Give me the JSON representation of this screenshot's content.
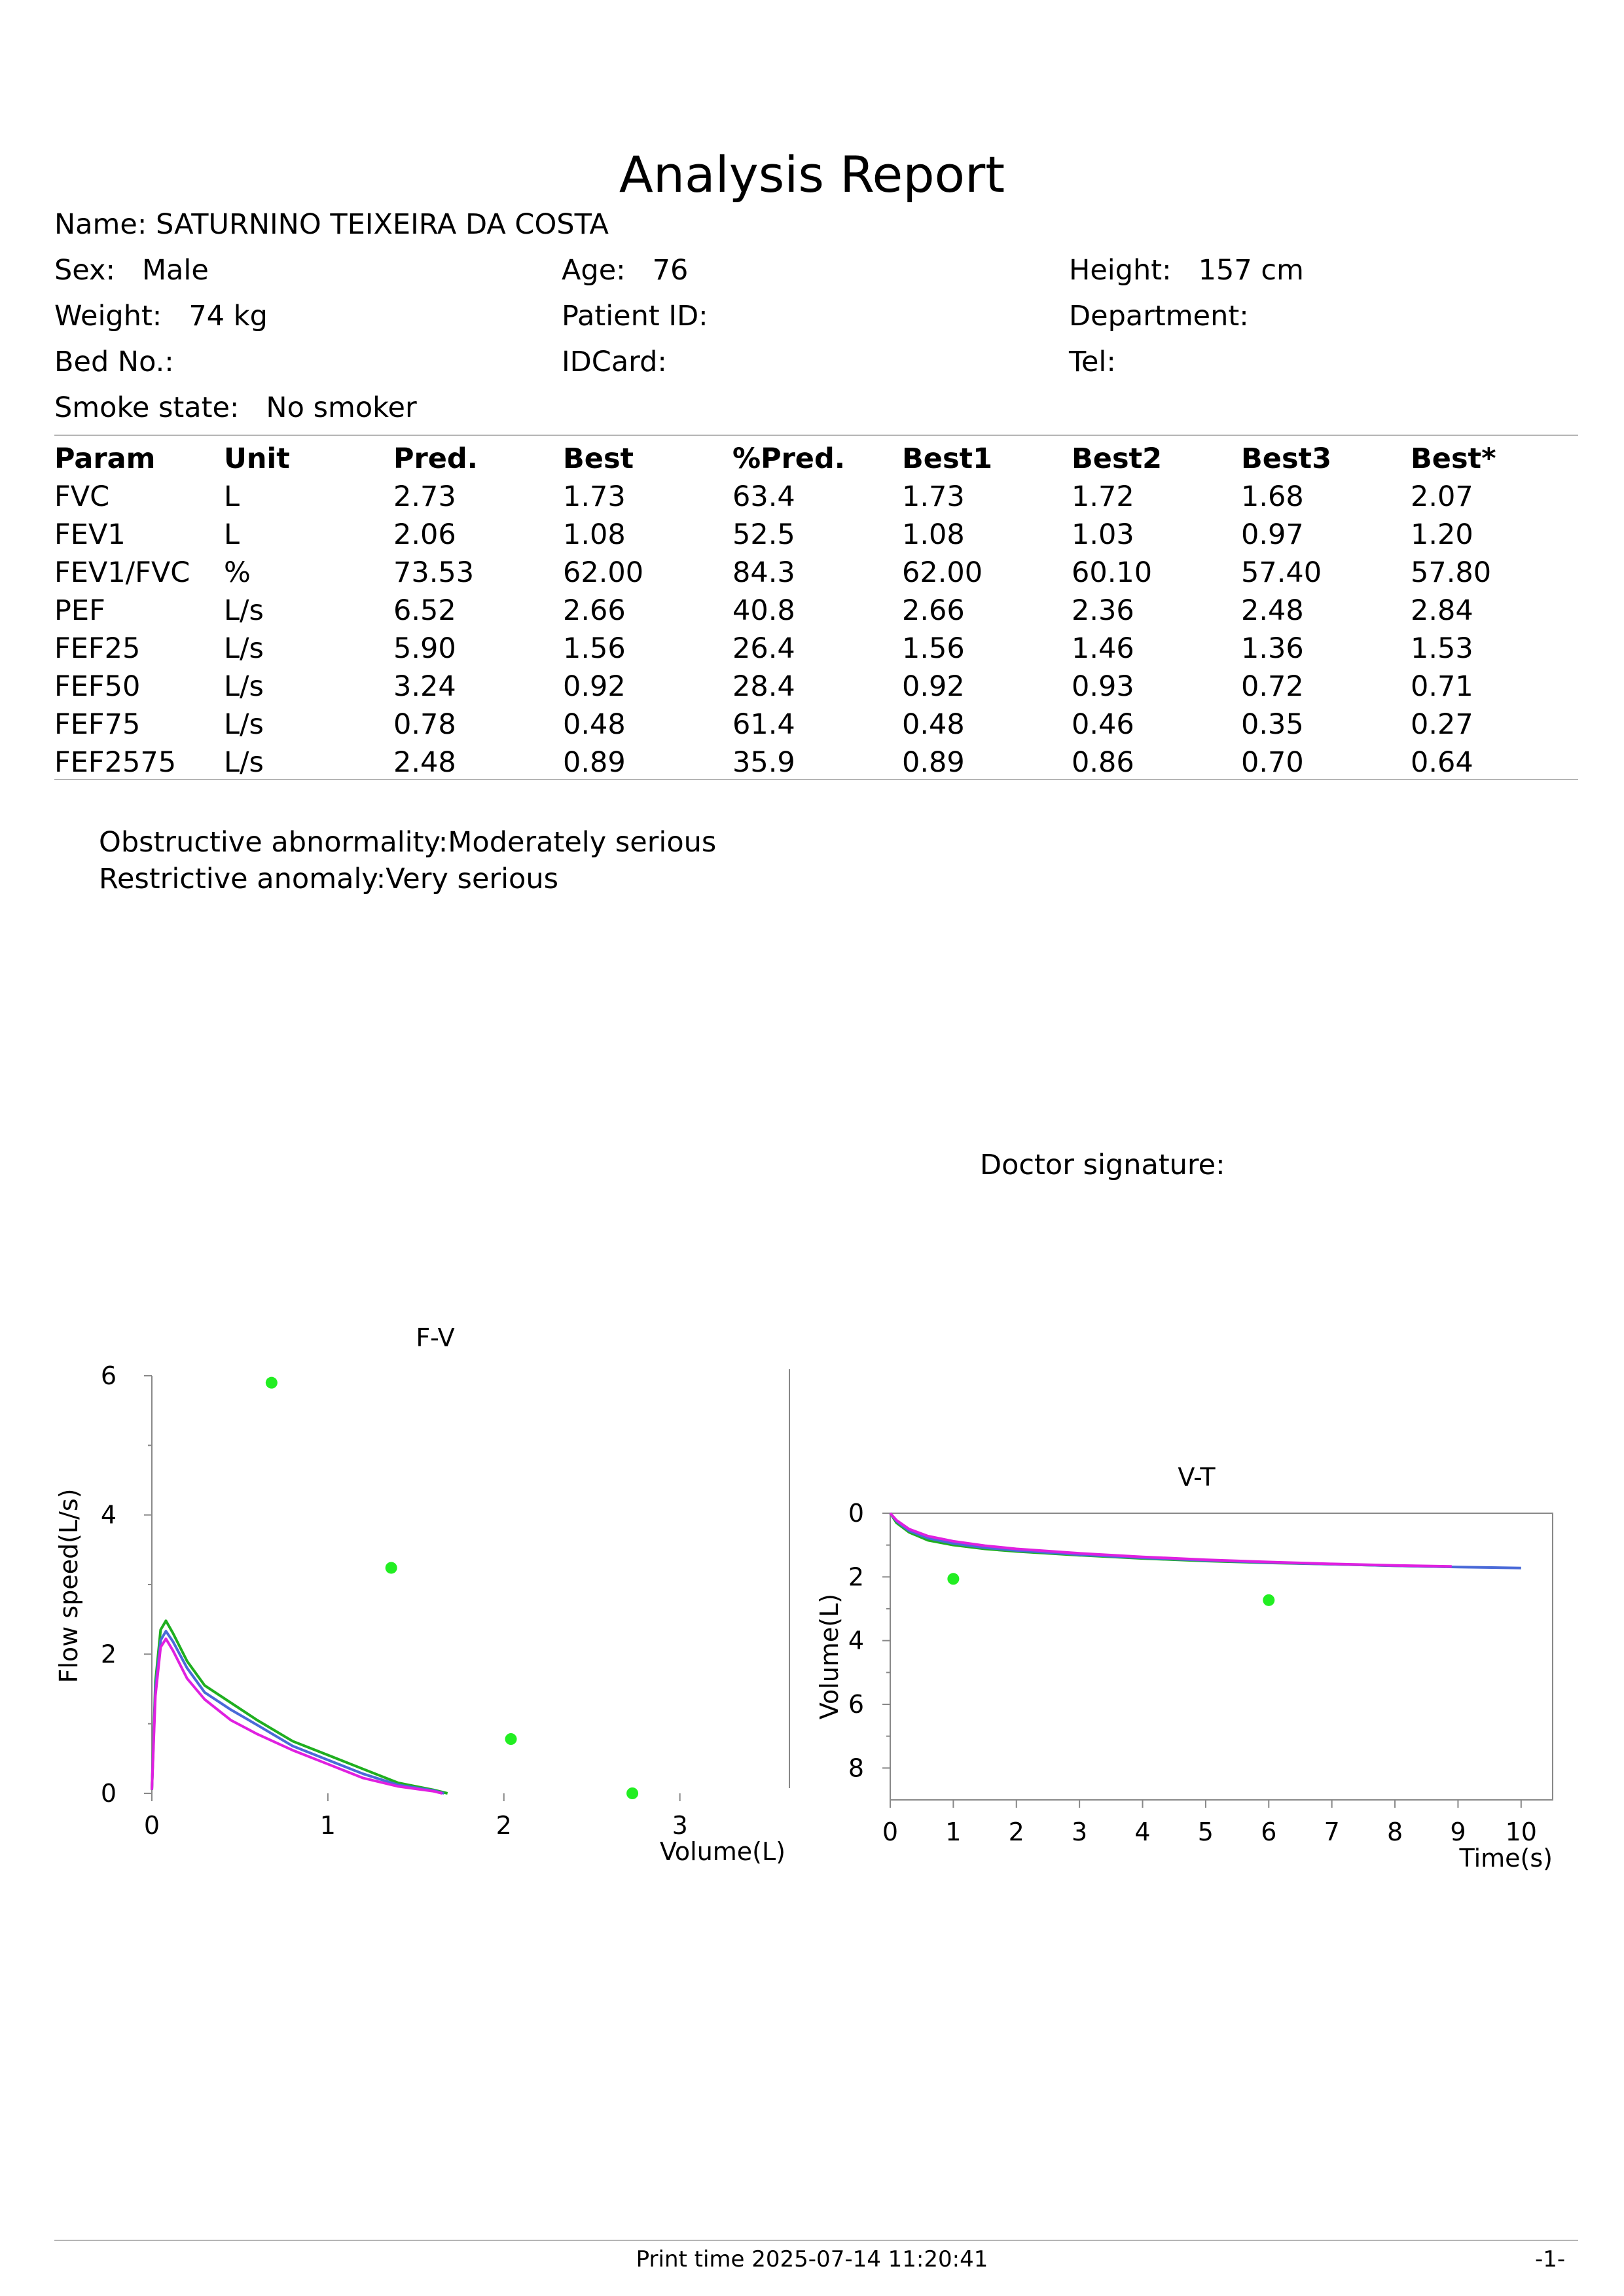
{
  "report": {
    "title": "Analysis Report",
    "name_label": "Name:",
    "name_value": "SATURNINO TEIXEIRA DA COSTA",
    "sex_label": "Sex:",
    "sex_value": "Male",
    "age_label": "Age:",
    "age_value": "76",
    "height_label": "Height:",
    "height_value": "157 cm",
    "weight_label": "Weight:",
    "weight_value": "74 kg",
    "patient_id_label": "Patient ID:",
    "department_label": "Department:",
    "bed_label": "Bed No.:",
    "idcard_label": "IDCard:",
    "tel_label": "Tel:",
    "smoke_label": "Smoke state:",
    "smoke_value": "No smoker"
  },
  "table": {
    "headers": [
      "Param",
      "Unit",
      "Pred.",
      "Best",
      "%Pred.",
      "Best1",
      "Best2",
      "Best3",
      "Best*"
    ],
    "rows": [
      [
        "FVC",
        "L",
        "2.73",
        "1.73",
        "63.4",
        "1.73",
        "1.72",
        "1.68",
        "2.07"
      ],
      [
        "FEV1",
        "L",
        "2.06",
        "1.08",
        "52.5",
        "1.08",
        "1.03",
        "0.97",
        "1.20"
      ],
      [
        "FEV1/FVC",
        "%",
        "73.53",
        "62.00",
        "84.3",
        "62.00",
        "60.10",
        "57.40",
        "57.80"
      ],
      [
        "PEF",
        "L/s",
        "6.52",
        "2.66",
        "40.8",
        "2.66",
        "2.36",
        "2.48",
        "2.84"
      ],
      [
        "FEF25",
        "L/s",
        "5.90",
        "1.56",
        "26.4",
        "1.56",
        "1.46",
        "1.36",
        "1.53"
      ],
      [
        "FEF50",
        "L/s",
        "3.24",
        "0.92",
        "28.4",
        "0.92",
        "0.93",
        "0.72",
        "0.71"
      ],
      [
        "FEF75",
        "L/s",
        "0.78",
        "0.48",
        "61.4",
        "0.48",
        "0.46",
        "0.35",
        "0.27"
      ],
      [
        "FEF2575",
        "L/s",
        "2.48",
        "0.89",
        "35.9",
        "0.89",
        "0.86",
        "0.70",
        "0.64"
      ]
    ]
  },
  "interpretation": [
    "Obstructive abnormality:Moderately serious",
    "Restrictive anomaly:Very serious"
  ],
  "signature_label": "Doctor signature:",
  "footer": {
    "print_time": "Print time 2025-07-14 11:20:41",
    "page": "-1-"
  },
  "colors": {
    "green_curve": "#1faf1f",
    "magenta_curve": "#e020e0",
    "blue_curve": "#4a6ad8",
    "marker": "#22ee22",
    "axis": "#888888"
  },
  "chart_data": [
    {
      "type": "line",
      "title": "F-V",
      "xlabel": "Volume(L)",
      "ylabel": "Flow speed(L/s)",
      "xlim": [
        0,
        3.6
      ],
      "ylim": [
        0,
        6
      ],
      "xticks": [
        0,
        1,
        2,
        3
      ],
      "yticks": [
        0,
        2,
        4,
        6
      ],
      "grid": false,
      "series": [
        {
          "color": "#1faf1f",
          "x": [
            0,
            0.02,
            0.05,
            0.08,
            0.12,
            0.2,
            0.3,
            0.45,
            0.6,
            0.8,
            1.0,
            1.2,
            1.4,
            1.6,
            1.68
          ],
          "y": [
            0.05,
            1.6,
            2.35,
            2.48,
            2.3,
            1.9,
            1.55,
            1.3,
            1.05,
            0.75,
            0.55,
            0.35,
            0.15,
            0.05,
            0
          ]
        },
        {
          "color": "#4a6ad8",
          "x": [
            0,
            0.02,
            0.05,
            0.08,
            0.12,
            0.2,
            0.3,
            0.45,
            0.6,
            0.8,
            1.0,
            1.2,
            1.4,
            1.6,
            1.66
          ],
          "y": [
            0.05,
            1.5,
            2.2,
            2.33,
            2.18,
            1.8,
            1.45,
            1.2,
            0.98,
            0.68,
            0.48,
            0.28,
            0.12,
            0.04,
            0
          ]
        },
        {
          "color": "#e020e0",
          "x": [
            0,
            0.02,
            0.05,
            0.08,
            0.12,
            0.2,
            0.3,
            0.45,
            0.6,
            0.8,
            1.0,
            1.2,
            1.4,
            1.6,
            1.65
          ],
          "y": [
            0.05,
            1.4,
            2.1,
            2.22,
            2.05,
            1.65,
            1.35,
            1.05,
            0.85,
            0.62,
            0.42,
            0.22,
            0.1,
            0.03,
            0
          ]
        }
      ],
      "markers": {
        "x": [
          0.68,
          1.36,
          2.04,
          2.73
        ],
        "y": [
          5.9,
          3.24,
          0.78,
          0
        ]
      }
    },
    {
      "type": "line",
      "title": "V-T",
      "xlabel": "Time(s)",
      "ylabel": "Volume(L)",
      "xlim": [
        0,
        10.5
      ],
      "ylim": [
        0,
        9
      ],
      "y_inverted": true,
      "xticks": [
        0,
        1,
        2,
        3,
        4,
        5,
        6,
        7,
        8,
        9,
        10
      ],
      "yticks": [
        0,
        2,
        4,
        6,
        8
      ],
      "grid": false,
      "series": [
        {
          "color": "#1faf1f",
          "x": [
            0,
            0.1,
            0.3,
            0.6,
            1,
            1.5,
            2,
            3,
            4,
            5,
            6,
            7,
            8,
            8.8
          ],
          "y": [
            0,
            0.3,
            0.6,
            0.85,
            1.0,
            1.12,
            1.2,
            1.32,
            1.42,
            1.5,
            1.56,
            1.6,
            1.65,
            1.68
          ]
        },
        {
          "color": "#4a6ad8",
          "x": [
            0,
            0.1,
            0.3,
            0.6,
            1,
            1.5,
            2,
            3,
            4,
            5,
            6,
            7,
            8,
            9,
            10
          ],
          "y": [
            0,
            0.25,
            0.55,
            0.78,
            0.95,
            1.08,
            1.17,
            1.3,
            1.4,
            1.48,
            1.55,
            1.6,
            1.65,
            1.69,
            1.72
          ]
        },
        {
          "color": "#e020e0",
          "x": [
            0,
            0.1,
            0.3,
            0.6,
            1,
            1.5,
            2,
            3,
            4,
            5,
            6,
            7,
            8,
            8.9
          ],
          "y": [
            0,
            0.22,
            0.5,
            0.72,
            0.88,
            1.02,
            1.12,
            1.26,
            1.37,
            1.46,
            1.53,
            1.59,
            1.64,
            1.67
          ]
        }
      ],
      "markers": {
        "x": [
          1,
          6
        ],
        "y": [
          2.06,
          2.73
        ]
      }
    }
  ]
}
